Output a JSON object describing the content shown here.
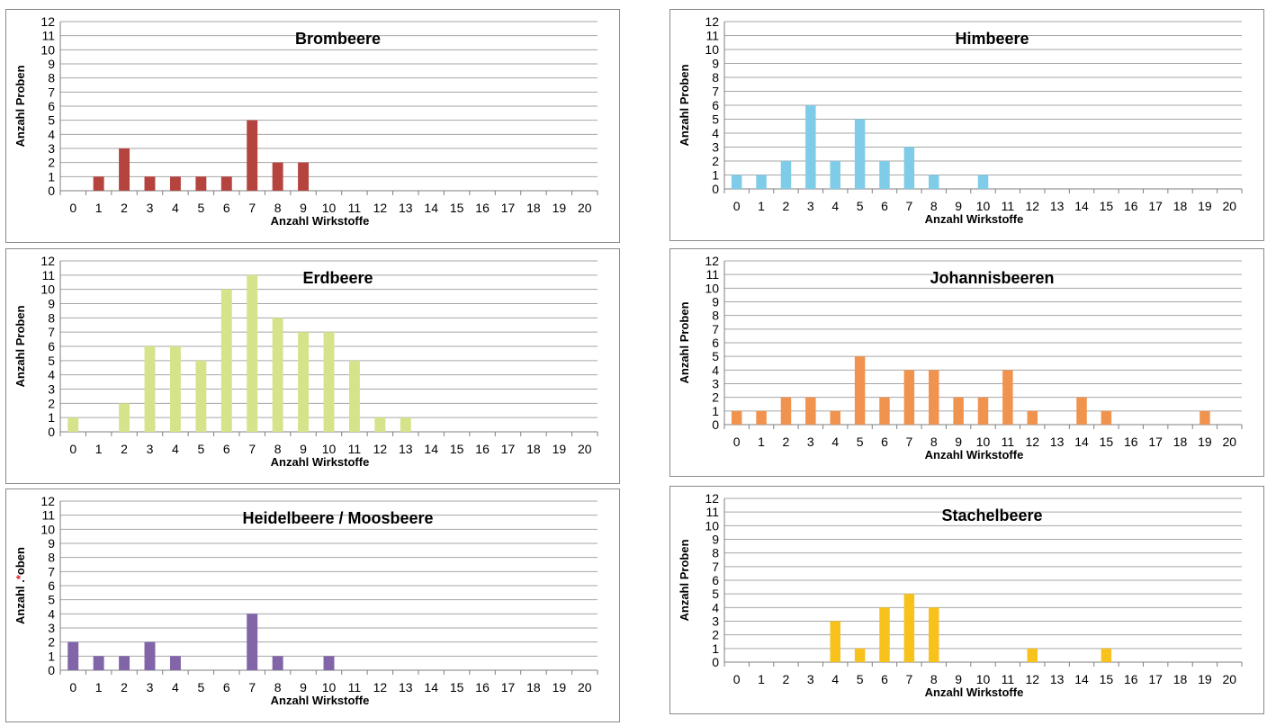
{
  "chart_data": [
    {
      "type": "bar",
      "title": "Brombeere",
      "xlabel": "Anzahl Wirkstoffe",
      "ylabel": "Anzahl Proben",
      "categories": [
        "0",
        "1",
        "2",
        "3",
        "4",
        "5",
        "6",
        "7",
        "8",
        "9",
        "10",
        "11",
        "12",
        "13",
        "14",
        "15",
        "16",
        "17",
        "18",
        "19",
        "20"
      ],
      "values": [
        0,
        1,
        3,
        1,
        1,
        1,
        1,
        5,
        2,
        2,
        0,
        0,
        0,
        0,
        0,
        0,
        0,
        0,
        0,
        0,
        0
      ],
      "ylim": [
        0,
        12
      ],
      "color": "#b5443f",
      "grid": true
    },
    {
      "type": "bar",
      "title": "Erdbeere",
      "xlabel": "Anzahl Wirkstoffe",
      "ylabel": "Anzahl Proben",
      "categories": [
        "0",
        "1",
        "2",
        "3",
        "4",
        "5",
        "6",
        "7",
        "8",
        "9",
        "10",
        "11",
        "12",
        "13",
        "14",
        "15",
        "16",
        "17",
        "18",
        "19",
        "20"
      ],
      "values": [
        1,
        0,
        2,
        6,
        6,
        5,
        10,
        11,
        8,
        7,
        7,
        5,
        1,
        1,
        0,
        0,
        0,
        0,
        0,
        0,
        0
      ],
      "ylim": [
        0,
        12
      ],
      "color": "#d6e38a",
      "grid": true
    },
    {
      "type": "bar",
      "title": "Heidelbeere / Moosbeere",
      "xlabel": "Anzahl Wirkstoffe",
      "ylabel": "Anzahl .",
      "ylabel_tail": "oben",
      "ylabel_marker": "*",
      "categories": [
        "0",
        "1",
        "2",
        "3",
        "4",
        "5",
        "6",
        "7",
        "8",
        "9",
        "10",
        "11",
        "12",
        "13",
        "14",
        "15",
        "16",
        "17",
        "18",
        "19",
        "20"
      ],
      "values": [
        2,
        1,
        1,
        2,
        1,
        0,
        0,
        4,
        1,
        0,
        1,
        0,
        0,
        0,
        0,
        0,
        0,
        0,
        0,
        0,
        0
      ],
      "ylim": [
        0,
        12
      ],
      "color": "#8264a8",
      "grid": true
    },
    {
      "type": "bar",
      "title": "Himbeere",
      "xlabel": "Anzahl Wirkstoffe",
      "ylabel": "Anzahl Proben",
      "categories": [
        "0",
        "1",
        "2",
        "3",
        "4",
        "5",
        "6",
        "7",
        "8",
        "9",
        "10",
        "11",
        "12",
        "13",
        "14",
        "15",
        "16",
        "17",
        "18",
        "19",
        "20"
      ],
      "values": [
        1,
        1,
        2,
        6,
        2,
        5,
        2,
        3,
        1,
        0,
        1,
        0,
        0,
        0,
        0,
        0,
        0,
        0,
        0,
        0,
        0
      ],
      "ylim": [
        0,
        12
      ],
      "color": "#7fcce8",
      "grid": true
    },
    {
      "type": "bar",
      "title": "Johannisbeeren",
      "xlabel": "Anzahl Wirkstoffe",
      "ylabel": "Anzahl Proben",
      "categories": [
        "0",
        "1",
        "2",
        "3",
        "4",
        "5",
        "6",
        "7",
        "8",
        "9",
        "10",
        "11",
        "12",
        "13",
        "14",
        "15",
        "16",
        "17",
        "18",
        "19",
        "20"
      ],
      "values": [
        1,
        1,
        2,
        2,
        1,
        5,
        2,
        4,
        4,
        2,
        2,
        4,
        1,
        0,
        2,
        1,
        0,
        0,
        0,
        1,
        0
      ],
      "ylim": [
        0,
        12
      ],
      "color": "#f0934e",
      "grid": true
    },
    {
      "type": "bar",
      "title": "Stachelbeere",
      "xlabel": "Anzahl Wirkstoffe",
      "ylabel": "Anzahl Proben",
      "categories": [
        "0",
        "1",
        "2",
        "3",
        "4",
        "5",
        "6",
        "7",
        "8",
        "9",
        "10",
        "11",
        "12",
        "13",
        "14",
        "15",
        "16",
        "17",
        "18",
        "19",
        "20"
      ],
      "values": [
        0,
        0,
        0,
        0,
        3,
        1,
        4,
        5,
        4,
        0,
        0,
        0,
        1,
        0,
        0,
        1,
        0,
        0,
        0,
        0,
        0
      ],
      "ylim": [
        0,
        12
      ],
      "color": "#f7c21b",
      "grid": true
    }
  ]
}
